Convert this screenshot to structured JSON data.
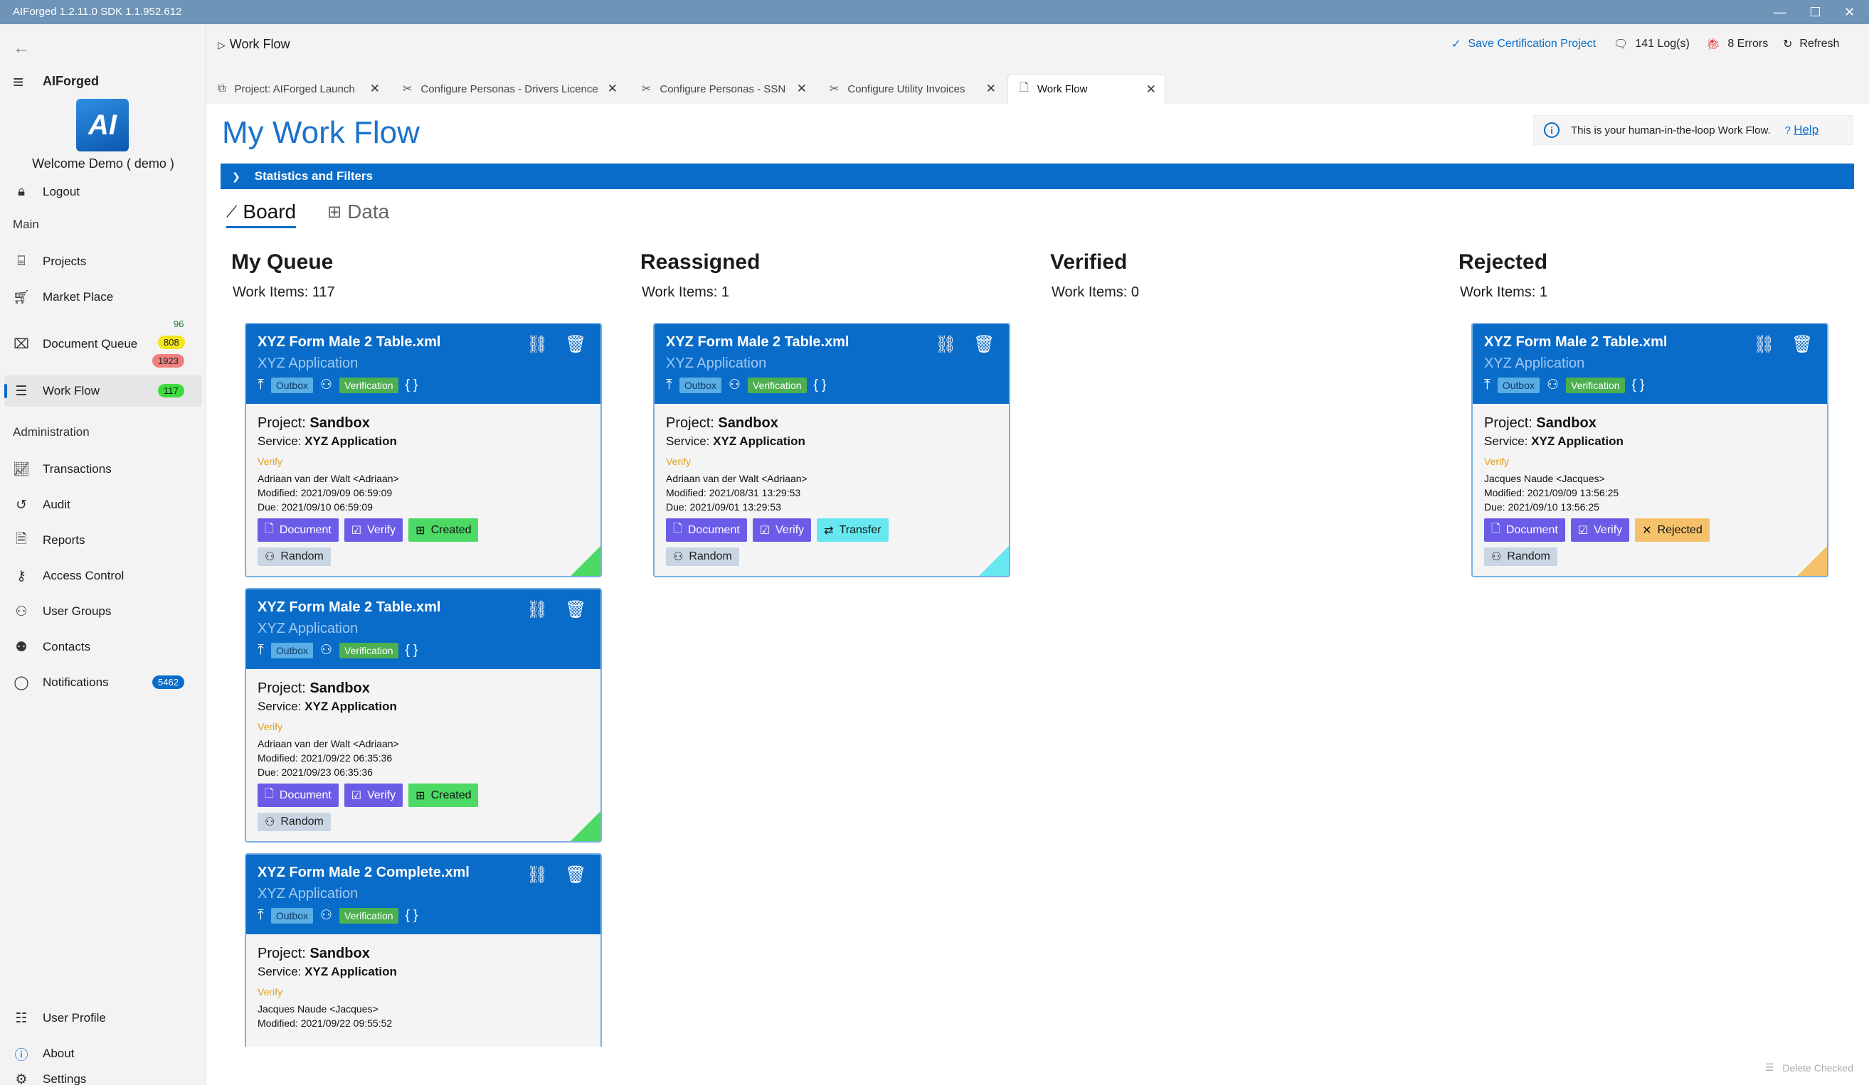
{
  "window": {
    "title": "AIForged   1.2.11.0   SDK  1.1.952.612"
  },
  "sidebar": {
    "app_name": "AIForged",
    "logo_text": "AI",
    "welcome": "Welcome  Demo  ( demo )",
    "logout": "Logout",
    "section_main": "Main",
    "section_admin": "Administration",
    "items": {
      "projects": "Projects",
      "market_place": "Market Place",
      "document_queue": "Document Queue",
      "work_flow": "Work Flow",
      "transactions": "Transactions",
      "audit": "Audit",
      "reports": "Reports",
      "access_control": "Access Control",
      "user_groups": "User Groups",
      "contacts": "Contacts",
      "notifications": "Notifications",
      "user_profile": "User Profile",
      "about": "About",
      "settings": "Settings"
    },
    "badges": {
      "docq_top": "96",
      "docq_mid": "808",
      "docq_bot": "1923",
      "work_flow": "117",
      "notifications": "5462"
    }
  },
  "header": {
    "title": "Work Flow",
    "save_cert": "Save Certification Project",
    "logs": "141 Log(s)",
    "errors": "8 Errors",
    "refresh": "Refresh"
  },
  "tabs": [
    {
      "label": "Project: AIForged Launch"
    },
    {
      "label": "Configure Personas - Drivers Licence"
    },
    {
      "label": "Configure Personas - SSN"
    },
    {
      "label": "Configure Utility Invoices"
    },
    {
      "label": "Work Flow"
    }
  ],
  "main": {
    "page_title": "My Work Flow",
    "info_text": "This is your human-in-the-loop Work Flow.",
    "help": "Help",
    "stats_bar": "Statistics and Filters",
    "view_board": "Board",
    "view_data": "Data",
    "delete_checked": "Delete Checked"
  },
  "columns": [
    {
      "title": "My Queue",
      "count": "Work Items: 117"
    },
    {
      "title": "Reassigned",
      "count": "Work Items: 1"
    },
    {
      "title": "Verified",
      "count": "Work Items: 0"
    },
    {
      "title": "Rejected",
      "count": "Work Items: 1"
    }
  ],
  "cards": {
    "c1": {
      "title": "XYZ Form Male 2 Table.xml",
      "sub": "XYZ Application",
      "outbox": "Outbox",
      "verification": "Verification",
      "project_label": "Project: ",
      "project": "Sandbox",
      "service_label": "Service: ",
      "service": "XYZ Application",
      "verify": "Verify",
      "user": "Adriaan van der Walt <Adriaan>",
      "modified": "Modified:  2021/09/09 06:59:09",
      "due": "Due:  2021/09/10 06:59:09",
      "chip_doc": "Document",
      "chip_verify": "Verify",
      "chip_status": "Created",
      "chip_random": "Random"
    },
    "c2": {
      "title": "XYZ Form Male 2 Table.xml",
      "sub": "XYZ Application",
      "outbox": "Outbox",
      "verification": "Verification",
      "project_label": "Project: ",
      "project": "Sandbox",
      "service_label": "Service: ",
      "service": "XYZ Application",
      "verify": "Verify",
      "user": "Adriaan van der Walt <Adriaan>",
      "modified": "Modified:  2021/09/22 06:35:36",
      "due": "Due:  2021/09/23 06:35:36",
      "chip_doc": "Document",
      "chip_verify": "Verify",
      "chip_status": "Created",
      "chip_random": "Random"
    },
    "c3": {
      "title": "XYZ Form Male 2 Complete.xml",
      "sub": "XYZ Application",
      "outbox": "Outbox",
      "verification": "Verification",
      "project_label": "Project: ",
      "project": "Sandbox",
      "service_label": "Service: ",
      "service": "XYZ Application",
      "verify": "Verify",
      "user": "Jacques Naude <Jacques>",
      "modified": "Modified:  2021/09/22 09:55:52"
    },
    "c4": {
      "title": "XYZ Form Male 2 Table.xml",
      "sub": "XYZ Application",
      "outbox": "Outbox",
      "verification": "Verification",
      "project_label": "Project: ",
      "project": "Sandbox",
      "service_label": "Service: ",
      "service": "XYZ Application",
      "verify": "Verify",
      "user": "Adriaan van der Walt <Adriaan>",
      "modified": "Modified:  2021/08/31 13:29:53",
      "due": "Due:  2021/09/01 13:29:53",
      "chip_doc": "Document",
      "chip_verify": "Verify",
      "chip_status": "Transfer",
      "chip_random": "Random"
    },
    "c5": {
      "title": "XYZ Form Male 2 Table.xml",
      "sub": "XYZ Application",
      "outbox": "Outbox",
      "verification": "Verification",
      "project_label": "Project: ",
      "project": "Sandbox",
      "service_label": "Service: ",
      "service": "XYZ Application",
      "verify": "Verify",
      "user": "Jacques Naude <Jacques>",
      "modified": "Modified:  2021/09/09 13:56:25",
      "due": "Due:  2021/09/10 13:56:25",
      "chip_doc": "Document",
      "chip_verify": "Verify",
      "chip_status": "Rejected",
      "chip_random": "Random"
    }
  },
  "colors": {
    "accent": "#0a6cc9",
    "created": "#4cd964",
    "transfer": "#67e8f0",
    "rejected": "#f5c26b"
  }
}
